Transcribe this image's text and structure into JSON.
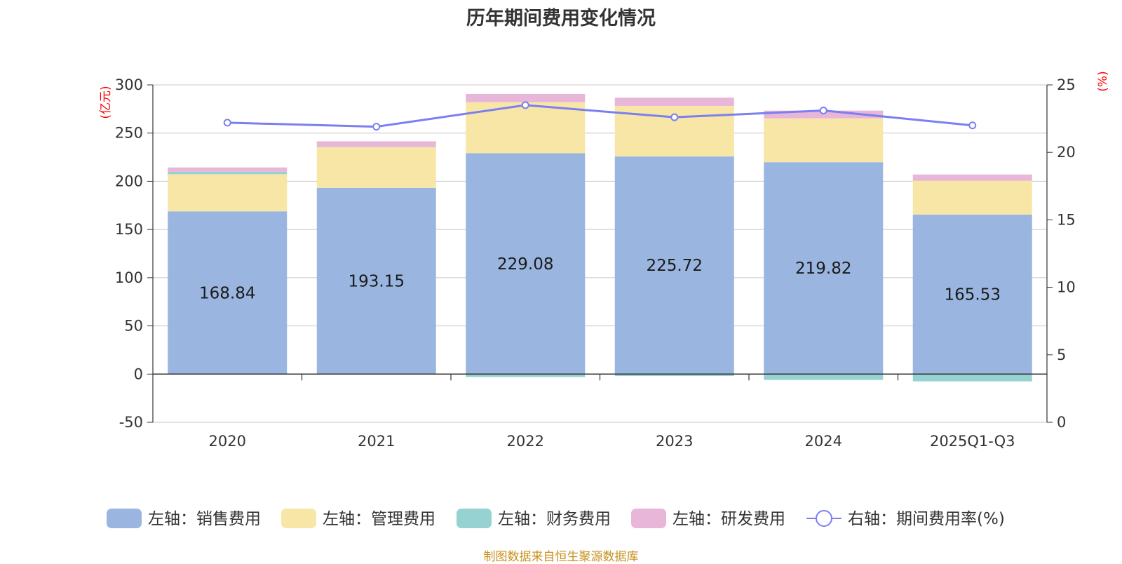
{
  "chart_data": {
    "type": "bar",
    "stacked": true,
    "title": "历年期间费用变化情况",
    "categories": [
      "2020",
      "2021",
      "2022",
      "2023",
      "2024",
      "2025Q1-Q3"
    ],
    "left_axis": {
      "unit": "(亿元)",
      "ylim": [
        -50,
        300
      ],
      "ticks": [
        -50,
        0,
        50,
        100,
        150,
        200,
        250,
        300
      ]
    },
    "right_axis": {
      "unit": "(%)",
      "ylim": [
        0,
        25
      ],
      "ticks": [
        0,
        5,
        10,
        15,
        20,
        25
      ]
    },
    "series": [
      {
        "name": "左轴：销售费用",
        "axis": "left",
        "kind": "bar",
        "color": "#9ab6e0",
        "values": [
          168.84,
          193.15,
          229.08,
          225.72,
          219.82,
          165.53
        ],
        "show_labels": true
      },
      {
        "name": "左轴：管理费用",
        "axis": "left",
        "kind": "bar",
        "color": "#f7e6a6",
        "values": [
          38.5,
          42.5,
          53.0,
          52.5,
          45.5,
          35.0
        ]
      },
      {
        "name": "左轴：财务费用",
        "axis": "left",
        "kind": "bar",
        "color": "#96d2d2",
        "values": [
          2.5,
          0.3,
          -3.0,
          -2.0,
          -6.0,
          -7.5
        ]
      },
      {
        "name": "左轴：研发费用",
        "axis": "left",
        "kind": "bar",
        "color": "#e8b6d8",
        "values": [
          4.5,
          5.5,
          8.5,
          8.5,
          8.0,
          6.5
        ]
      },
      {
        "name": "右轴：期间费用率(%)",
        "axis": "right",
        "kind": "line",
        "color": "#7b7ff0",
        "values": [
          22.2,
          21.9,
          23.5,
          22.6,
          23.1,
          22.0
        ]
      }
    ],
    "grid": true,
    "legend": "bottom"
  },
  "footer": {
    "source": "制图数据来自恒生聚源数据库"
  }
}
